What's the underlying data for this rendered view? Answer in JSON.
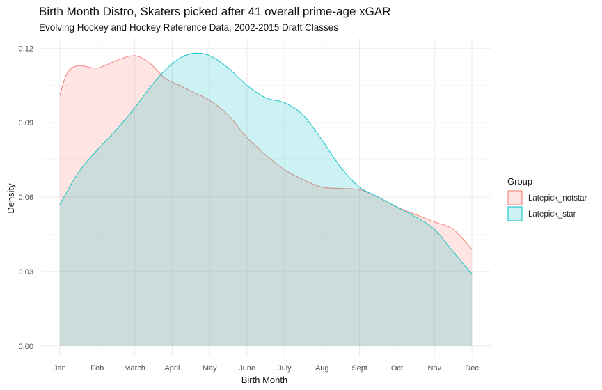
{
  "chart_data": {
    "type": "area",
    "title": "Birth Month Distro, Skaters picked after 41 overall prime-age xGAR",
    "subtitle": "Evolving Hockey and Hockey Reference Data, 2002-2015 Draft Classes",
    "xlabel": "Birth Month",
    "ylabel": "Density",
    "categories": [
      "Jan",
      "Feb",
      "March",
      "April",
      "May",
      "June",
      "July",
      "Aug",
      "Sept",
      "Oct",
      "Nov",
      "Dec"
    ],
    "xlim": [
      0.5,
      12.5
    ],
    "ylim": [
      -0.004,
      0.124
    ],
    "yticks": [
      0.0,
      0.03,
      0.06,
      0.09,
      0.12
    ],
    "ytick_labels": [
      "0.00",
      "0.03",
      "0.06",
      "0.09",
      "0.12"
    ],
    "grid": true,
    "legend": {
      "title": "Group",
      "position": "right"
    },
    "series": [
      {
        "name": "Latepick_notstar",
        "fill": "#F8766D",
        "x": [
          1,
          1.2,
          1.5,
          2,
          2.5,
          3,
          3.4,
          3.8,
          4.2,
          4.6,
          5,
          5.5,
          6,
          6.5,
          7,
          7.5,
          8,
          8.5,
          9,
          9.5,
          10,
          10.5,
          11,
          11.5,
          12
        ],
        "y": [
          0.101,
          0.11,
          0.113,
          0.112,
          0.115,
          0.117,
          0.114,
          0.108,
          0.105,
          0.102,
          0.099,
          0.093,
          0.084,
          0.077,
          0.071,
          0.067,
          0.064,
          0.0635,
          0.063,
          0.06,
          0.056,
          0.053,
          0.05,
          0.047,
          0.039
        ]
      },
      {
        "name": "Latepick_star",
        "fill": "#00BFC4",
        "x": [
          1,
          1.5,
          2,
          2.5,
          3,
          3.4,
          3.8,
          4.2,
          4.6,
          5,
          5.5,
          6,
          6.5,
          7,
          7.5,
          8,
          8.5,
          9,
          9.5,
          10,
          10.5,
          11,
          11.5,
          12
        ],
        "y": [
          0.057,
          0.07,
          0.079,
          0.087,
          0.096,
          0.104,
          0.111,
          0.116,
          0.118,
          0.117,
          0.112,
          0.105,
          0.1,
          0.098,
          0.093,
          0.083,
          0.072,
          0.064,
          0.06,
          0.056,
          0.052,
          0.047,
          0.038,
          0.029
        ]
      }
    ]
  }
}
